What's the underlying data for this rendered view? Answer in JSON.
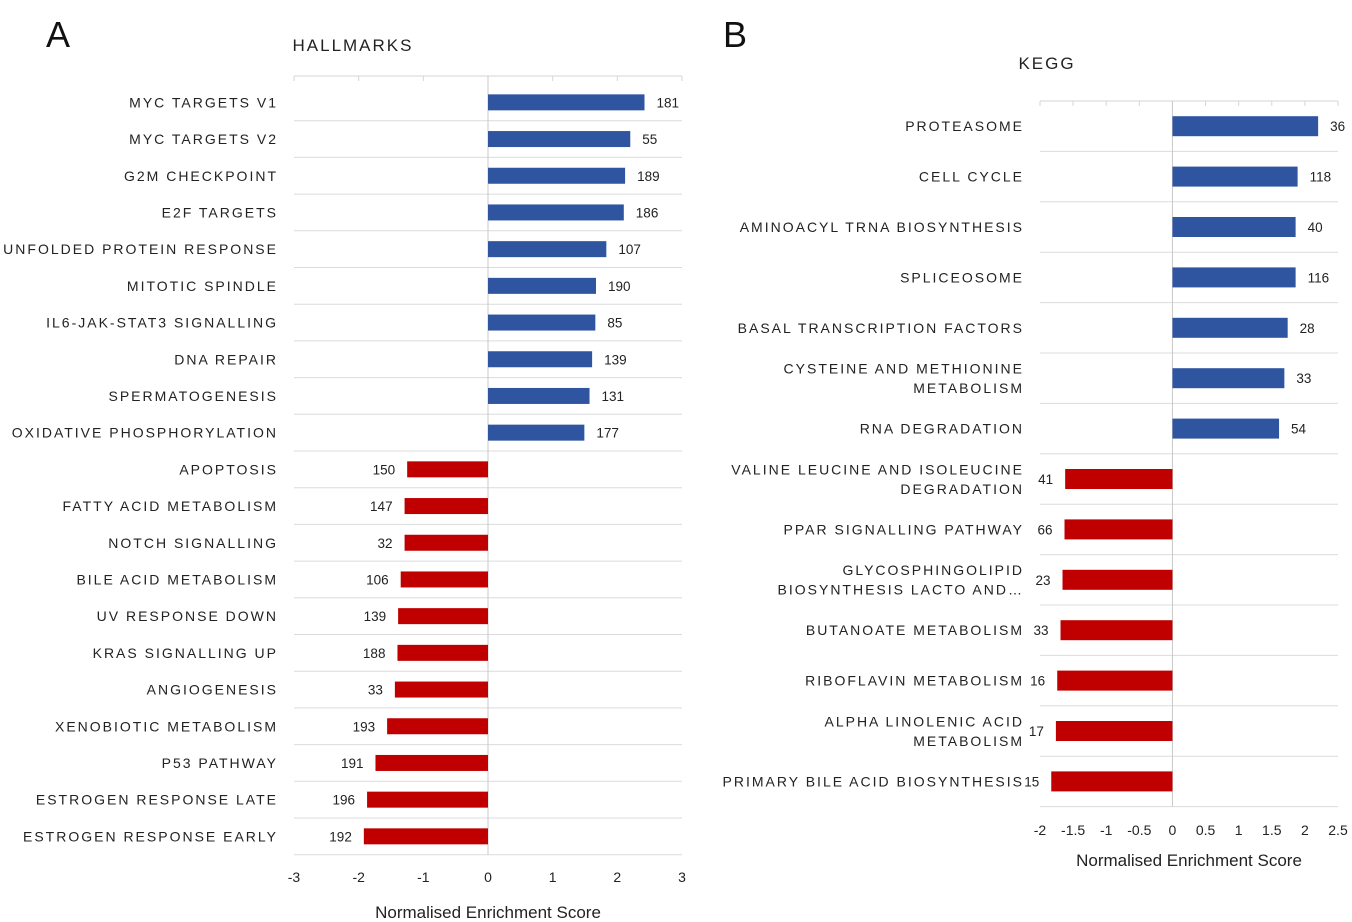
{
  "panels": [
    {
      "letter": "A"
    },
    {
      "letter": "B"
    }
  ],
  "chart_data": [
    {
      "type": "bar",
      "orientation": "horizontal",
      "title": "HALLMARKS",
      "xlabel": "Normalised Enrichment Score",
      "xlim": [
        -3,
        3
      ],
      "xticks": [
        -3,
        -2,
        -1,
        0,
        1,
        2,
        3
      ],
      "positive_color": "#2F55A1",
      "negative_color": "#C00000",
      "categories": [
        {
          "label": [
            "MYC TARGETS V1"
          ],
          "value": 2.42,
          "count": "181"
        },
        {
          "label": [
            "MYC TARGETS V2"
          ],
          "value": 2.2,
          "count": "55"
        },
        {
          "label": [
            "G2M CHECKPOINT"
          ],
          "value": 2.12,
          "count": "189"
        },
        {
          "label": [
            "E2F TARGETS"
          ],
          "value": 2.1,
          "count": "186"
        },
        {
          "label": [
            "UNFOLDED PROTEIN RESPONSE"
          ],
          "value": 1.83,
          "count": "107"
        },
        {
          "label": [
            "MITOTIC SPINDLE"
          ],
          "value": 1.67,
          "count": "190"
        },
        {
          "label": [
            "IL6-JAK-STAT3 SIGNALLING"
          ],
          "value": 1.66,
          "count": "85"
        },
        {
          "label": [
            "DNA REPAIR"
          ],
          "value": 1.61,
          "count": "139"
        },
        {
          "label": [
            "SPERMATOGENESIS"
          ],
          "value": 1.57,
          "count": "131"
        },
        {
          "label": [
            "OXIDATIVE PHOSPHORYLATION"
          ],
          "value": 1.49,
          "count": "177"
        },
        {
          "label": [
            "APOPTOSIS"
          ],
          "value": -1.25,
          "count": "150"
        },
        {
          "label": [
            "FATTY ACID METABOLISM"
          ],
          "value": -1.29,
          "count": "147"
        },
        {
          "label": [
            "NOTCH SIGNALLING"
          ],
          "value": -1.29,
          "count": "32"
        },
        {
          "label": [
            "BILE ACID METABOLISM"
          ],
          "value": -1.35,
          "count": "106"
        },
        {
          "label": [
            "UV RESPONSE DOWN"
          ],
          "value": -1.39,
          "count": "139"
        },
        {
          "label": [
            "KRAS SIGNALLING UP"
          ],
          "value": -1.4,
          "count": "188"
        },
        {
          "label": [
            "ANGIOGENESIS"
          ],
          "value": -1.44,
          "count": "33"
        },
        {
          "label": [
            "XENOBIOTIC METABOLISM"
          ],
          "value": -1.56,
          "count": "193"
        },
        {
          "label": [
            "P53 PATHWAY"
          ],
          "value": -1.74,
          "count": "191"
        },
        {
          "label": [
            "ESTROGEN RESPONSE LATE"
          ],
          "value": -1.87,
          "count": "196"
        },
        {
          "label": [
            "ESTROGEN RESPONSE EARLY"
          ],
          "value": -1.92,
          "count": "192"
        }
      ]
    },
    {
      "type": "bar",
      "orientation": "horizontal",
      "title": "KEGG",
      "xlabel": "Normalised Enrichment Score",
      "xlim": [
        -2,
        2.5
      ],
      "xticks": [
        -2,
        -1.5,
        -1,
        -0.5,
        0,
        0.5,
        1,
        1.5,
        2,
        2.5
      ],
      "xtick_labels": [
        "-2",
        "-1.5",
        "-1",
        "-0.5",
        "0",
        "0.5",
        "1",
        "1.5",
        "2",
        "2.5"
      ],
      "positive_color": "#2F55A1",
      "negative_color": "#C00000",
      "categories": [
        {
          "label": [
            "PROTEASOME"
          ],
          "value": 2.2,
          "count": "36"
        },
        {
          "label": [
            "CELL CYCLE"
          ],
          "value": 1.89,
          "count": "118"
        },
        {
          "label": [
            "AMINOACYL TRNA BIOSYNTHESIS"
          ],
          "value": 1.86,
          "count": "40"
        },
        {
          "label": [
            "SPLICEOSOME"
          ],
          "value": 1.86,
          "count": "116"
        },
        {
          "label": [
            "BASAL TRANSCRIPTION FACTORS"
          ],
          "value": 1.74,
          "count": "28"
        },
        {
          "label": [
            "CYSTEINE AND METHIONINE",
            "METABOLISM"
          ],
          "value": 1.69,
          "count": "33"
        },
        {
          "label": [
            "RNA DEGRADATION"
          ],
          "value": 1.61,
          "count": "54"
        },
        {
          "label": [
            "VALINE LEUCINE AND ISOLEUCINE",
            "DEGRADATION"
          ],
          "value": -1.62,
          "count": "41"
        },
        {
          "label": [
            "PPAR SIGNALLING PATHWAY"
          ],
          "value": -1.63,
          "count": "66"
        },
        {
          "label": [
            "GLYCOSPHINGOLIPID",
            "BIOSYNTHESIS LACTO AND…"
          ],
          "value": -1.66,
          "count": "23"
        },
        {
          "label": [
            "BUTANOATE METABOLISM"
          ],
          "value": -1.69,
          "count": "33"
        },
        {
          "label": [
            "RIBOFLAVIN METABOLISM"
          ],
          "value": -1.74,
          "count": "16"
        },
        {
          "label": [
            "ALPHA LINOLENIC ACID",
            "METABOLISM"
          ],
          "value": -1.76,
          "count": "17"
        },
        {
          "label": [
            "PRIMARY BILE ACID BIOSYNTHESIS"
          ],
          "value": -1.83,
          "count": "15"
        }
      ]
    }
  ]
}
